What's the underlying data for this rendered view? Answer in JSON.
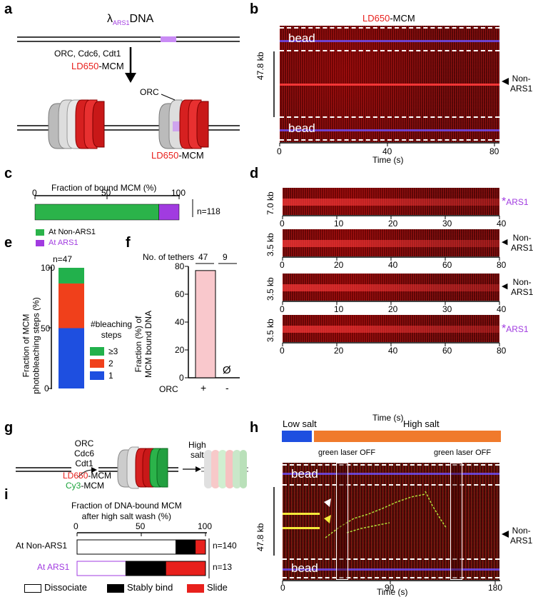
{
  "panels": {
    "a": "a",
    "b": "b",
    "c": "c",
    "d": "d",
    "e": "e",
    "f": "f",
    "g": "g",
    "h": "h",
    "i": "i"
  },
  "a": {
    "lambda_label": "λ",
    "lambda_sub": "ARS1",
    "lambda_suffix": "DNA",
    "reagents": [
      "ORC, Cdc6, Cdt1"
    ],
    "mcm_prefix": "LD650",
    "mcm_suffix": "-MCM",
    "orc_label": "ORC",
    "bottom_mcm_prefix": "LD650",
    "bottom_mcm_suffix": "-MCM"
  },
  "b": {
    "title_prefix": "LD650",
    "title_suffix": "-MCM",
    "bead_top": "bead",
    "bead_bottom": "bead",
    "length": "47.8 kb",
    "marker_label_1": "Non-",
    "marker_label_2": "ARS1",
    "xticks": [
      "0",
      "40",
      "80"
    ],
    "xlabel": "Time (s)"
  },
  "c": {
    "title": "Fraction of bound MCM (%)",
    "ticks": [
      "0",
      "50",
      "100"
    ],
    "n": "n=118",
    "legend": [
      {
        "label": "At Non-ARS1",
        "color": "#2bb34a"
      },
      {
        "label": "At ARS1",
        "color": "#a13be0"
      }
    ]
  },
  "d": {
    "rows": [
      {
        "length": "7.0 kb",
        "xticks": [
          "0",
          "10",
          "20",
          "30",
          "40"
        ],
        "label1": "ARS1",
        "label2": "",
        "star": true
      },
      {
        "length": "3.5 kb",
        "xticks": [
          "0",
          "20",
          "40",
          "60",
          "80"
        ],
        "label1": "Non-",
        "label2": "ARS1",
        "star": false
      },
      {
        "length": "3.5 kb",
        "xticks": [
          "0",
          "10",
          "20",
          "30",
          "40"
        ],
        "label1": "Non-",
        "label2": "ARS1",
        "star": false
      },
      {
        "length": "3.5 kb",
        "xticks": [
          "0",
          "20",
          "40",
          "60",
          "80"
        ],
        "label1": "ARS1",
        "label2": "",
        "star": true
      }
    ],
    "xlabel": "Time (s)"
  },
  "e": {
    "n": "n=47",
    "ylabel1": "Fraction of MCM",
    "ylabel2": "photobleaching steps (%)",
    "yticks": [
      "0",
      "50",
      "100"
    ],
    "legend_title1": "#bleaching",
    "legend_title2": "steps",
    "legend": [
      {
        "label": "≥3",
        "color": "#22b14c"
      },
      {
        "label": "2",
        "color": "#f0401b"
      },
      {
        "label": "1",
        "color": "#1e4fe0"
      }
    ]
  },
  "f": {
    "header": "No. of tethers",
    "counts": [
      "47",
      "9"
    ],
    "ylabel1": "Fraction (%) of",
    "ylabel2": "MCM bound DNA",
    "yticks": [
      "0",
      "20",
      "40",
      "60",
      "80"
    ],
    "xlabel": "ORC",
    "categories": [
      "+",
      "-"
    ],
    "empty_symbol": "Ø"
  },
  "g": {
    "reagents": [
      "ORC",
      "Cdc6",
      "Cdt1"
    ],
    "red_mcm_prefix": "LD650",
    "red_mcm_suffix": "-MCM",
    "green_mcm_prefix": "Cy3",
    "green_mcm_suffix": "-MCM",
    "high_salt": [
      "High",
      "salt"
    ]
  },
  "h": {
    "low_salt": "Low salt",
    "high_salt": "High salt",
    "laser_off_1": "green laser OFF",
    "laser_off_2": "green laser OFF",
    "bead_top": "bead",
    "bead_bottom": "bead",
    "length": "47.8 kb",
    "marker_label_1": "Non-",
    "marker_label_2": "ARS1",
    "xticks": [
      "0",
      "90",
      "180"
    ],
    "xlabel": "Time (s)",
    "low_color": "#1e4fe0",
    "high_color": "#f07a2c"
  },
  "i": {
    "title1": "Fraction of DNA-bound MCM",
    "title2": "after high salt wash (%)",
    "ticks": [
      "0",
      "50",
      "100"
    ],
    "rows": [
      {
        "label": "At Non-ARS1",
        "n": "n=140"
      },
      {
        "label": "At ARS1",
        "n": "n=13"
      }
    ],
    "legend": [
      {
        "label": "Dissociate",
        "color": "#ffffff"
      },
      {
        "label": "Stably bind",
        "color": "#000000"
      },
      {
        "label": "Slide",
        "color": "#e8201c"
      }
    ]
  },
  "chart_data": [
    {
      "type": "bar",
      "panel": "c",
      "title": "Fraction of bound MCM (%)",
      "categories": [
        "bound MCM"
      ],
      "series": [
        {
          "name": "At Non-ARS1",
          "values": [
            86
          ]
        },
        {
          "name": "At ARS1",
          "values": [
            14
          ]
        }
      ],
      "stacked": true,
      "xlim": [
        0,
        100
      ]
    },
    {
      "type": "bar",
      "panel": "e",
      "categories": [
        "n=47"
      ],
      "series": [
        {
          "name": "1",
          "values": [
            50
          ]
        },
        {
          "name": "2",
          "values": [
            37
          ]
        },
        {
          "name": "≥3",
          "values": [
            13
          ]
        }
      ],
      "stacked": true,
      "ylim": [
        0,
        100
      ],
      "ylabel": "Fraction of MCM photobleaching steps (%)"
    },
    {
      "type": "bar",
      "panel": "f",
      "categories": [
        "+",
        "-"
      ],
      "values": [
        77,
        0
      ],
      "ylim": [
        0,
        80
      ],
      "xlabel": "ORC",
      "ylabel": "Fraction (%) of MCM bound DNA"
    },
    {
      "type": "bar",
      "panel": "i",
      "title": "Fraction of DNA-bound MCM after high salt wash (%)",
      "categories": [
        "At Non-ARS1",
        "At ARS1"
      ],
      "series": [
        {
          "name": "Dissociate",
          "values": [
            77,
            38
          ]
        },
        {
          "name": "Stably bind",
          "values": [
            15,
            31
          ]
        },
        {
          "name": "Slide",
          "values": [
            8,
            31
          ]
        }
      ],
      "stacked": true,
      "xlim": [
        0,
        100
      ]
    }
  ]
}
